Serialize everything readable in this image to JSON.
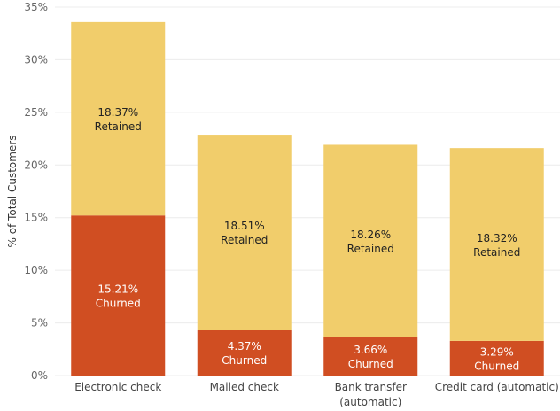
{
  "chart_data": {
    "type": "bar",
    "stacked": true,
    "title": "",
    "xlabel": "",
    "ylabel": "% of Total Customers",
    "ylim": [
      0,
      35
    ],
    "yticks": [
      "0%",
      "5%",
      "10%",
      "15%",
      "20%",
      "25%",
      "30%",
      "35%"
    ],
    "grid": true,
    "categories": [
      [
        "Electronic check"
      ],
      [
        "Mailed check"
      ],
      [
        "Bank transfer",
        "(automatic)"
      ],
      [
        "Credit card (automatic)"
      ]
    ],
    "series": [
      {
        "name": "Churned",
        "color": "#d04e22",
        "values": [
          15.21,
          4.37,
          3.66,
          3.29
        ],
        "labels": [
          "15.21%",
          "4.37%",
          "3.66%",
          "3.29%"
        ]
      },
      {
        "name": "Retained",
        "color": "#f1cd6b",
        "values": [
          18.37,
          18.51,
          18.26,
          18.32
        ],
        "labels": [
          "18.37%",
          "18.51%",
          "18.26%",
          "18.32%"
        ]
      }
    ]
  }
}
